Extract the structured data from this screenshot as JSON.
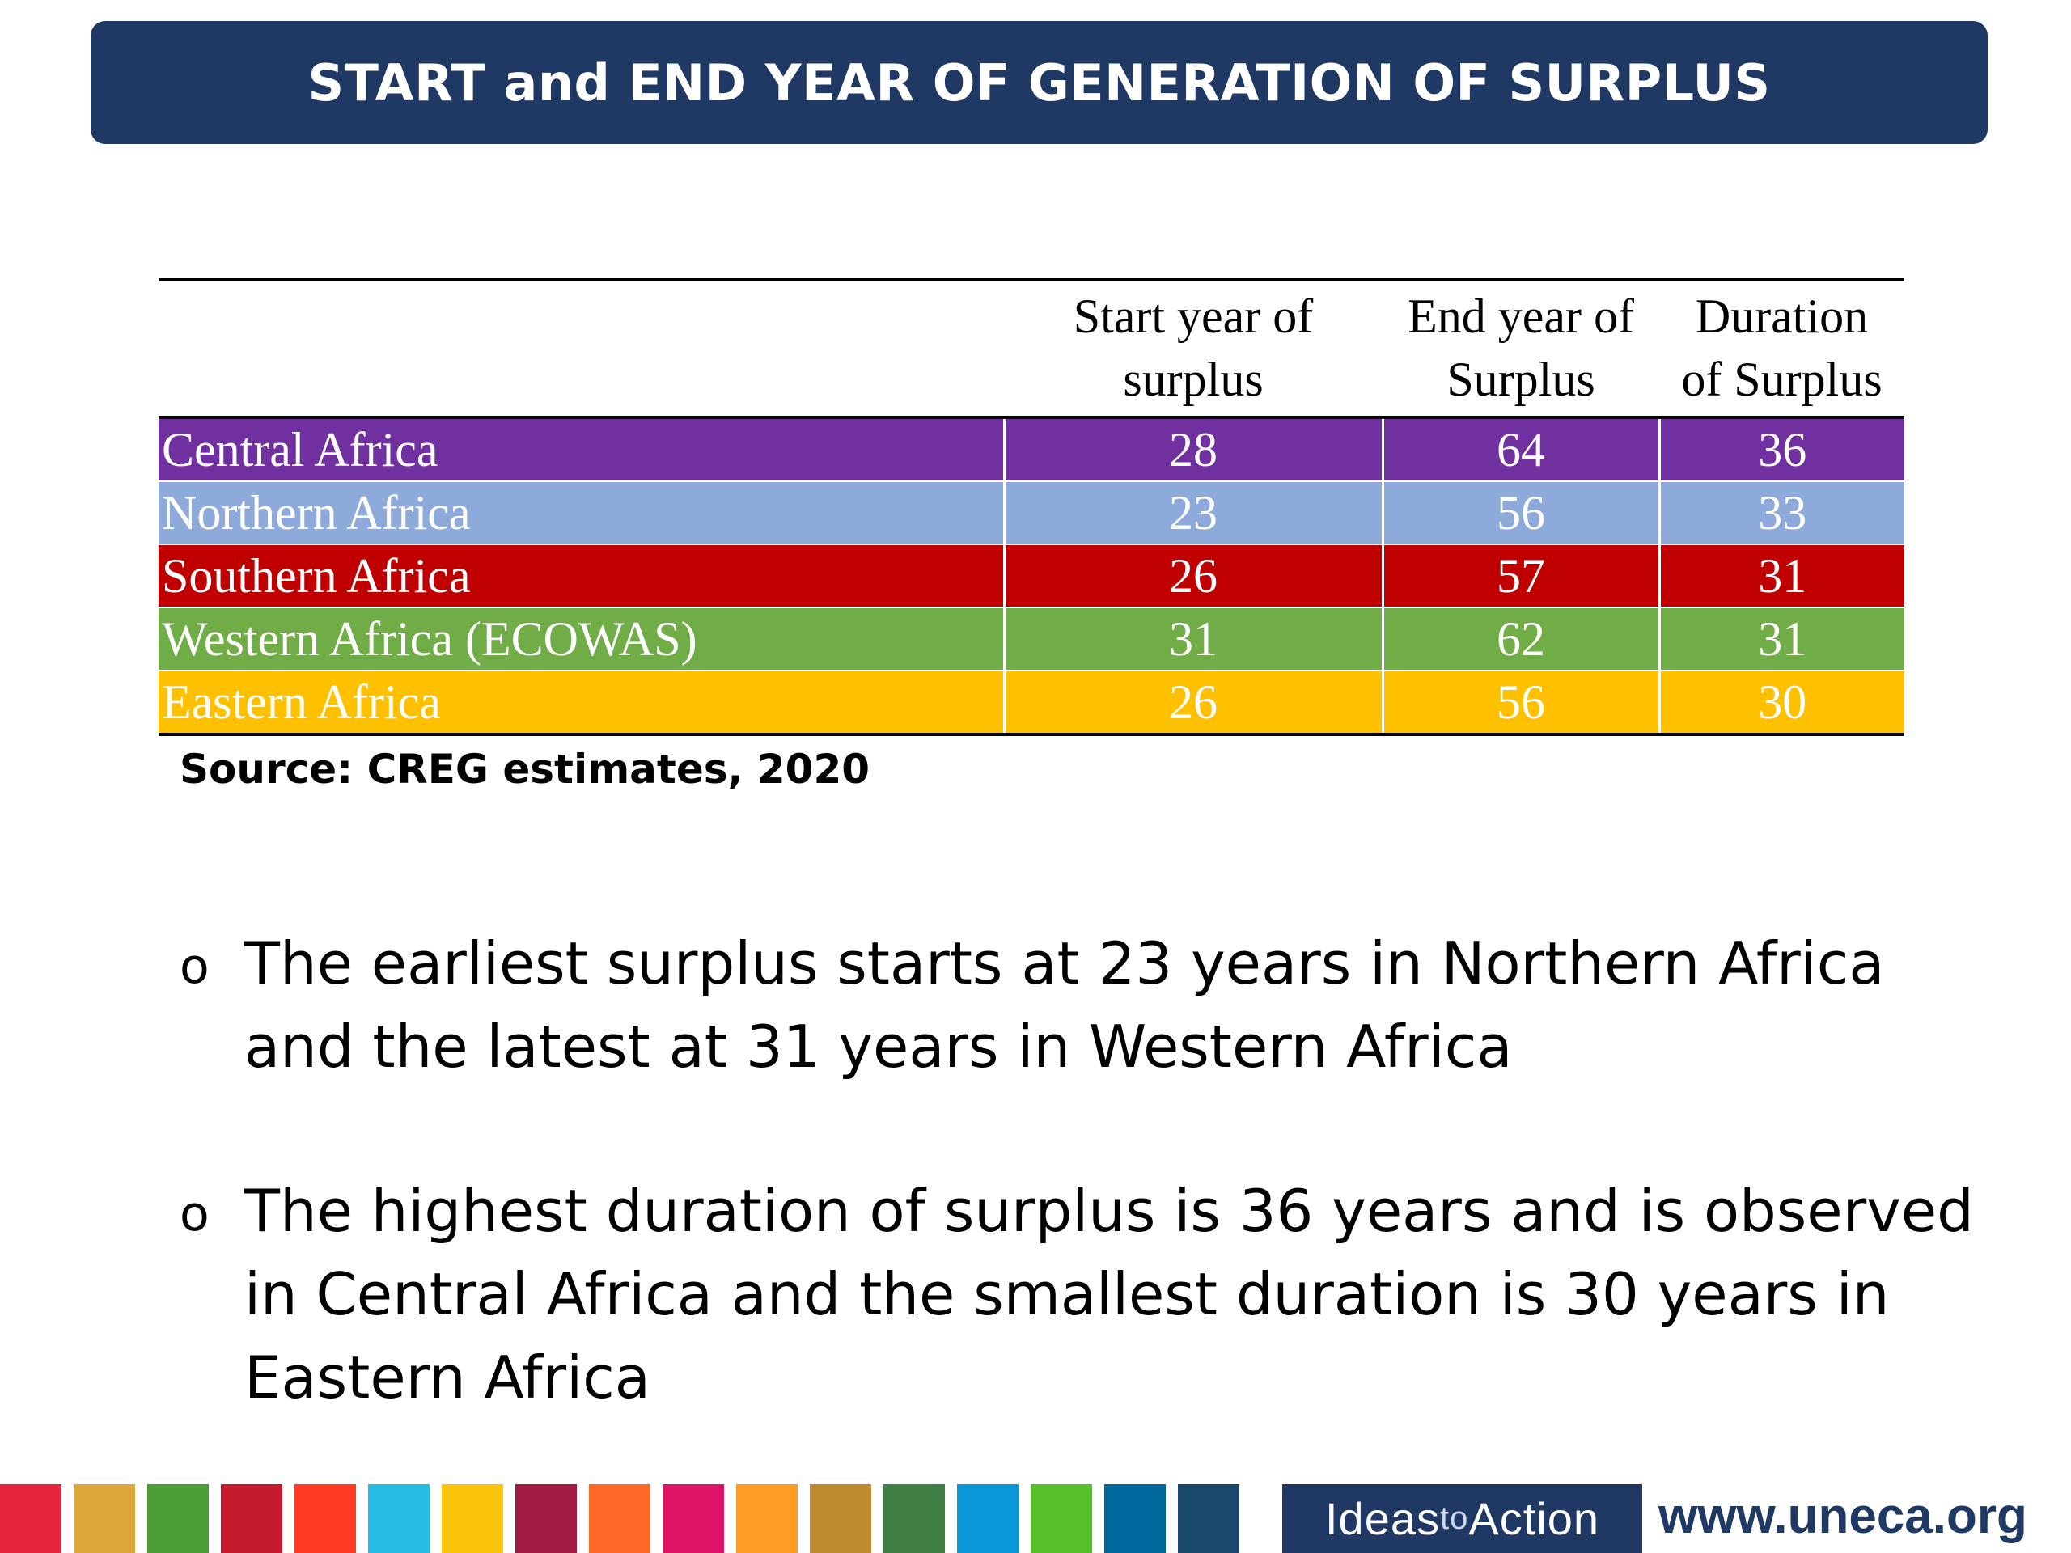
{
  "title": "START and END YEAR OF GENERATION OF SURPLUS",
  "table": {
    "headers": {
      "region": "",
      "start_line1": "Start year of",
      "start_line2": "surplus",
      "end_line1": "End year of",
      "end_line2": "Surplus",
      "duration_line1": "Duration",
      "duration_line2": "of Surplus"
    },
    "rows": [
      {
        "region": "Central Africa",
        "start": "28",
        "end": "64",
        "duration": "36",
        "color": "#7030a0"
      },
      {
        "region": "Northern Africa",
        "start": "23",
        "end": "56",
        "duration": "33",
        "color": "#8eaadb"
      },
      {
        "region": "Southern Africa",
        "start": "26",
        "end": "57",
        "duration": "31",
        "color": "#c00000"
      },
      {
        "region": "Western Africa (ECOWAS)",
        "start": "31",
        "end": "62",
        "duration": "31",
        "color": "#70ad47"
      },
      {
        "region": "Eastern Africa",
        "start": "26",
        "end": "56",
        "duration": "30",
        "color": "#ffc000"
      }
    ]
  },
  "source": "Source: CREG estimates, 2020",
  "bullets": [
    {
      "marker": "o",
      "text": "The earliest surplus starts at 23 years in Northern Africa and the latest at 31 years in Western Africa"
    },
    {
      "marker": "o",
      "text": "The highest duration of surplus is 36 years and is observed in Central Africa and the smallest duration is 30 years in Eastern Africa"
    }
  ],
  "footer": {
    "brand_ideas": "Ideas",
    "brand_to": "to",
    "brand_action": "Action",
    "url": "www.uneca.org",
    "sdg_colors": [
      "#e5243b",
      "#dda63a",
      "#4c9f38",
      "#c5192d",
      "#ff3a21",
      "#26bde2",
      "#fcc30b",
      "#a21942",
      "#fd6925",
      "#dd1367",
      "#fd9d24",
      "#bf8b2e",
      "#3f7e44",
      "#0a97d9",
      "#56c02b",
      "#00689d",
      "#19486a"
    ]
  }
}
